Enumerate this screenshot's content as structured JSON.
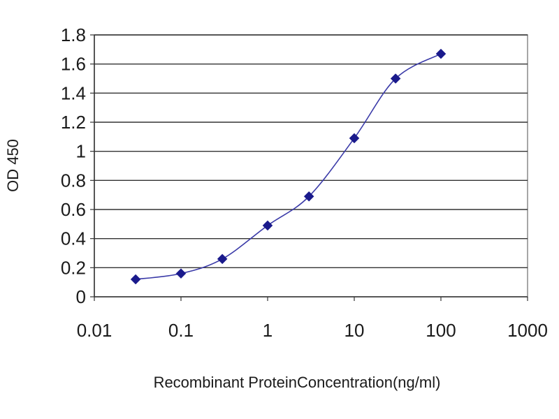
{
  "chart_data": {
    "type": "line",
    "xlabel": "Recombinant ProteinConcentration(ng/ml)",
    "ylabel": "OD 450",
    "xscale": "log",
    "xlim": [
      0.01,
      1000
    ],
    "ylim": [
      0,
      1.8
    ],
    "x_ticks": [
      "0.01",
      "0.1",
      "1",
      "10",
      "100",
      "1000"
    ],
    "y_ticks": [
      "0",
      "0.2",
      "0.4",
      "0.6",
      "0.8",
      "1",
      "1.2",
      "1.4",
      "1.6",
      "1.8"
    ],
    "grid": "horizontal",
    "legend": "none",
    "series": [
      {
        "color": "#1a1a8c",
        "x": [
          0.03,
          0.1,
          0.3,
          1,
          3,
          10,
          30,
          100
        ],
        "y": [
          0.12,
          0.16,
          0.26,
          0.49,
          0.69,
          1.09,
          1.5,
          1.67
        ]
      }
    ]
  }
}
